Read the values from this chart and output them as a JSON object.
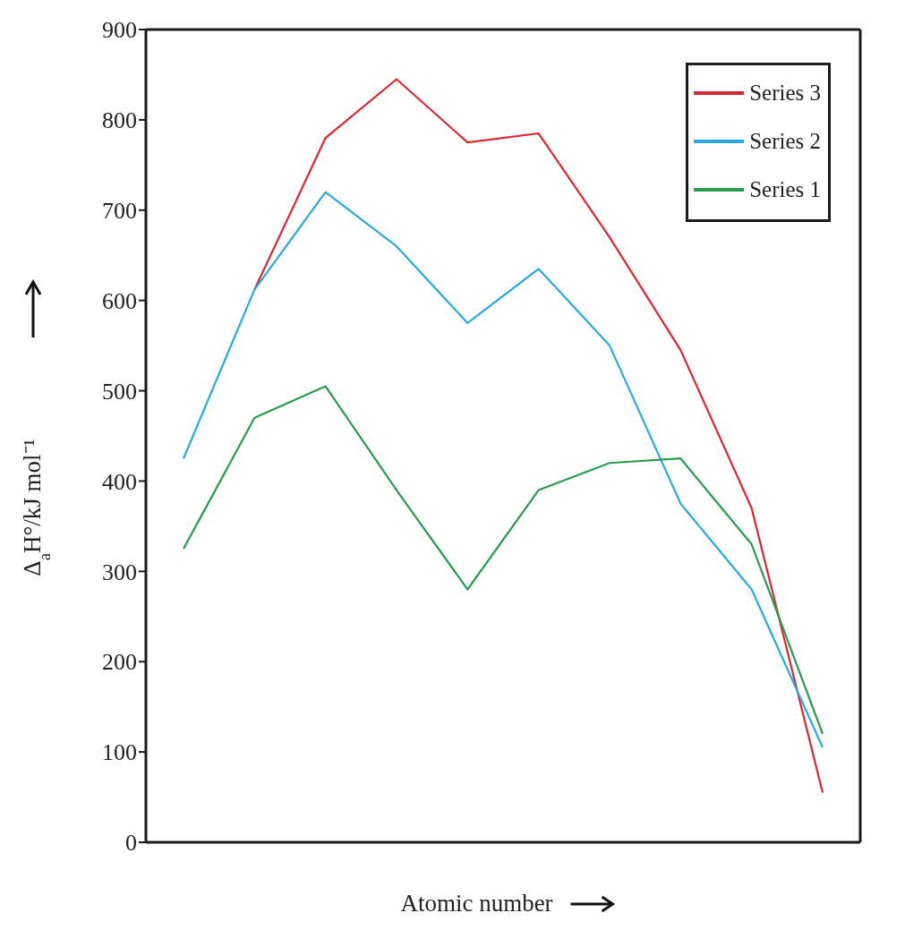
{
  "chart_data": {
    "type": "line",
    "xlabel": "Atomic number",
    "ylabel": "Δ$_{a}$H°/kJ mol⁻¹",
    "categories": [
      null,
      null,
      null,
      null,
      null,
      null,
      null,
      null,
      null,
      null
    ],
    "series": [
      {
        "name": "Series 3",
        "color": "#d9262f",
        "values": [
          null,
          612,
          780,
          845,
          775,
          785,
          670,
          545,
          370,
          55
        ]
      },
      {
        "name": "Series 2",
        "color": "#29a8e0",
        "values": [
          425,
          612,
          720,
          660,
          575,
          635,
          550,
          375,
          280,
          105
        ]
      },
      {
        "name": "Series 1",
        "color": "#2a9a4e",
        "values": [
          325,
          470,
          505,
          390,
          280,
          390,
          420,
          425,
          330,
          120
        ]
      }
    ],
    "ylim": [
      0,
      900
    ],
    "yticks": [
      0,
      100,
      200,
      300,
      400,
      500,
      600,
      700,
      800,
      900
    ],
    "tick_labels": "y",
    "grid": false,
    "legend": "top right",
    "marker": "none",
    "line_style": "solid"
  }
}
